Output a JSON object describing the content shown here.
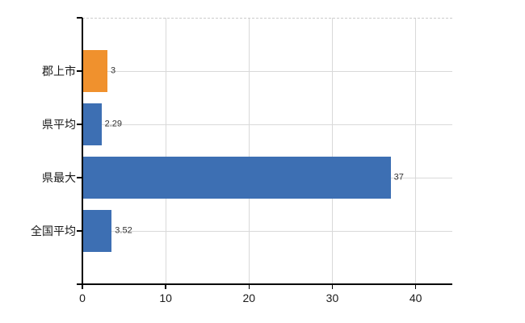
{
  "chart_data": {
    "type": "bar",
    "orientation": "horizontal",
    "title": "",
    "categories": [
      "郡上市",
      "県平均",
      "県最大",
      "全国平均"
    ],
    "values": [
      3,
      2.29,
      37,
      3.52
    ],
    "value_labels": [
      "3",
      "2.29",
      "37",
      "3.52"
    ],
    "bar_colors": [
      "#F0912D",
      "#3D6FB3",
      "#3D6FB3",
      "#3D6FB3"
    ],
    "x_ticks": [
      0,
      10,
      20,
      30,
      40
    ],
    "x_tick_labels": [
      "0",
      "10",
      "20",
      "30",
      "40"
    ],
    "xlim": [
      0,
      44.4
    ],
    "grid": "on",
    "grid_horizontal_at": "category-centers",
    "top_border_style": "dashed",
    "legend": "none"
  },
  "colors": {
    "background": "#FFFFFF",
    "gridline": "#D9D9D9",
    "top_border": "#CCCCCC",
    "axis": "#000000",
    "category_label_text": "#1A1A1A",
    "value_label_text": "#333333",
    "tick_label_text": "#1A1A1A"
  }
}
